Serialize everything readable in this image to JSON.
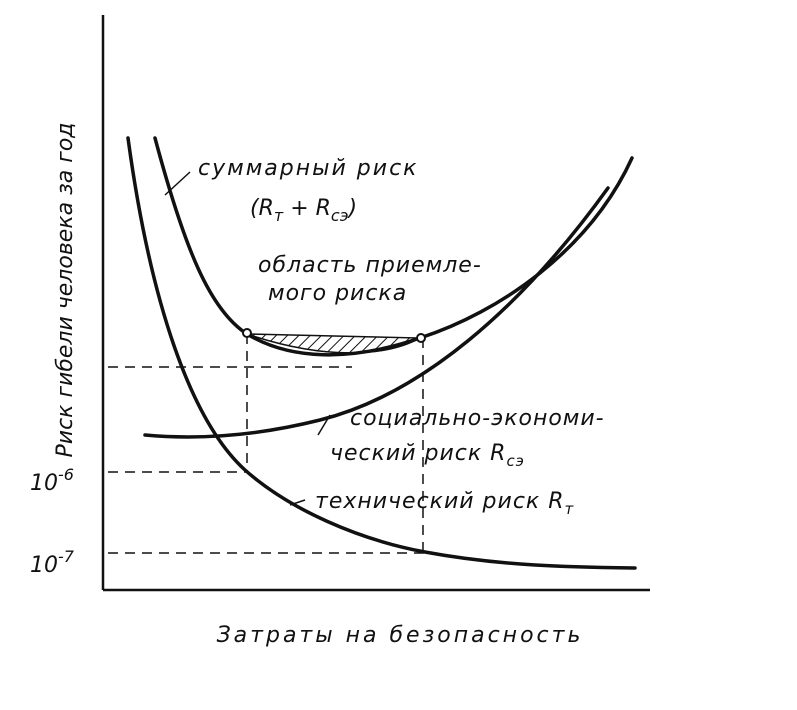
{
  "axes": {
    "y_label": "Риск гибели человека за год",
    "x_label": "Затраты на безопасность"
  },
  "ticks": [
    {
      "base": "10",
      "exp": "-6"
    },
    {
      "base": "10",
      "exp": "-7"
    }
  ],
  "labels": {
    "total": {
      "line1": "суммарный риск",
      "line2_open": "(R",
      "line2_sub1": "т",
      "line2_mid": " + R",
      "line2_sub2": "сэ",
      "line2_close": ")"
    },
    "acceptable": {
      "line1": "область приемле-",
      "line2": "мого риска"
    },
    "socio": {
      "line1": "социально-экономи-",
      "line2": "ческий риск R",
      "sub": "сэ"
    },
    "technical": {
      "text": "технический риск R",
      "sub": "т"
    }
  }
}
